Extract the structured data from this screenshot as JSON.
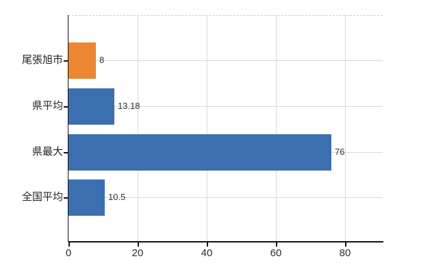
{
  "chart_data": {
    "type": "bar",
    "orientation": "horizontal",
    "title": "",
    "xlabel": "",
    "ylabel": "",
    "categories": [
      "尾張旭市",
      "県平均",
      "県最大",
      "全国平均"
    ],
    "values": [
      8,
      13.18,
      76,
      10.5
    ],
    "value_labels": [
      "8",
      "13.18",
      "76",
      "10.5"
    ],
    "x_ticks": [
      0,
      20,
      40,
      60,
      80
    ],
    "x_tick_labels": [
      "0",
      "20",
      "40",
      "60",
      "80"
    ],
    "xlim": [
      0,
      91
    ],
    "grid": true,
    "legend": false,
    "bar_colors": [
      "#ED8633",
      "#3C6FB0",
      "#3C6FB0",
      "#3C6FB0"
    ],
    "highlight_color": "#ED8633",
    "base_color": "#3C6FB0",
    "gridline_color": "#D9D9D9",
    "axis_color": "#111111"
  }
}
